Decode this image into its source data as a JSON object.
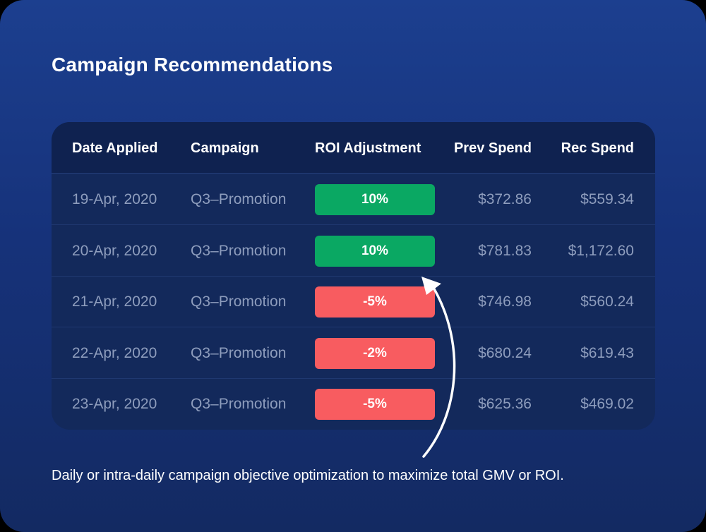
{
  "title": "Campaign Recommendations",
  "colors": {
    "background_top": "#1c3f8f",
    "background_bottom": "#132a62",
    "positive": "#0aa863",
    "negative": "#f85c60",
    "muted_text": "#8e9dbd"
  },
  "table": {
    "headers": {
      "date": "Date Applied",
      "campaign": "Campaign",
      "roi": "ROI Adjustment",
      "prev": "Prev Spend",
      "rec": "Rec Spend"
    },
    "rows": [
      {
        "date": "19-Apr, 2020",
        "campaign": "Q3–Promotion",
        "roi": "10%",
        "roi_sign": "positive",
        "prev": "$372.86",
        "rec": "$559.34"
      },
      {
        "date": "20-Apr, 2020",
        "campaign": "Q3–Promotion",
        "roi": "10%",
        "roi_sign": "positive",
        "prev": "$781.83",
        "rec": "$1,172.60"
      },
      {
        "date": "21-Apr, 2020",
        "campaign": "Q3–Promotion",
        "roi": "-5%",
        "roi_sign": "negative",
        "prev": "$746.98",
        "rec": "$560.24"
      },
      {
        "date": "22-Apr, 2020",
        "campaign": "Q3–Promotion",
        "roi": "-2%",
        "roi_sign": "negative",
        "prev": "$680.24",
        "rec": "$619.43"
      },
      {
        "date": "23-Apr, 2020",
        "campaign": "Q3–Promotion",
        "roi": "-5%",
        "roi_sign": "negative",
        "prev": "$625.36",
        "rec": "$469.02"
      }
    ]
  },
  "arrow_icon": "curved-arrow-up-icon",
  "footer": "Daily or intra-daily campaign objective optimization to maximize total GMV or ROI."
}
